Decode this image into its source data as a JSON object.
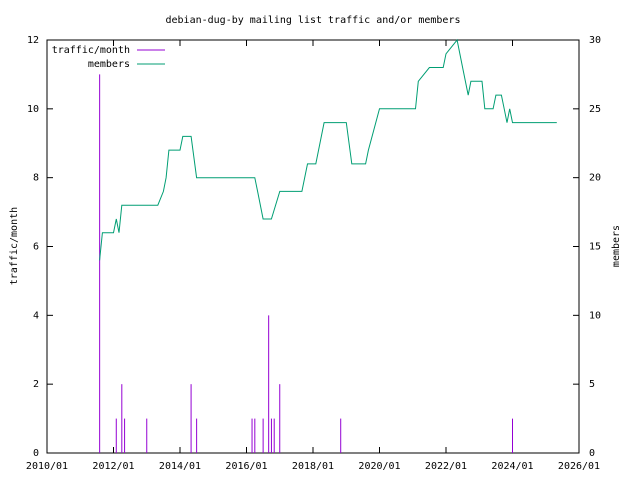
{
  "chart_data": {
    "type": "impulse-line",
    "title": "debian-dug-by mailing list traffic and/or members",
    "xlabel": null,
    "ylabel": "traffic/month",
    "y2label": "members",
    "xlim": [
      "2010/01",
      "2026/01"
    ],
    "xticks": [
      "2010/01",
      "2012/01",
      "2014/01",
      "2016/01",
      "2018/01",
      "2020/01",
      "2022/01",
      "2024/01",
      "2026/01"
    ],
    "ylim": [
      0,
      12
    ],
    "yticks": [
      0,
      2,
      4,
      6,
      8,
      10,
      12
    ],
    "y2lim": [
      0,
      30
    ],
    "y2ticks": [
      0,
      5,
      10,
      15,
      20,
      25,
      30
    ],
    "grid": false,
    "legend": "top-left",
    "series": [
      {
        "name": "traffic/month",
        "color": "#9400d3",
        "style": "impulses",
        "x": [
          "2011/08",
          "2012/02",
          "2012/04",
          "2012/05",
          "2013/01",
          "2014/05",
          "2014/07",
          "2016/03",
          "2016/04",
          "2016/07",
          "2016/09",
          "2016/10",
          "2016/11",
          "2017/01",
          "2018/11",
          "2024/01"
        ],
        "values": [
          11,
          1,
          2,
          1,
          1,
          2,
          1,
          1,
          1,
          1,
          4,
          1,
          1,
          2,
          1,
          1
        ]
      },
      {
        "name": "members",
        "color": "#009e73",
        "style": "line",
        "axis": "y2",
        "x": [
          "2011/08",
          "2011/09",
          "2012/01",
          "2012/02",
          "2012/03",
          "2012/04",
          "2013/05",
          "2013/07",
          "2013/08",
          "2013/09",
          "2014/01",
          "2014/02",
          "2014/05",
          "2014/07",
          "2016/04",
          "2016/05",
          "2016/07",
          "2016/10",
          "2017/01",
          "2017/09",
          "2017/11",
          "2018/02",
          "2018/05",
          "2019/01",
          "2019/03",
          "2019/08",
          "2019/09",
          "2020/01",
          "2021/02",
          "2021/03",
          "2021/07",
          "2021/12",
          "2022/01",
          "2022/05",
          "2022/07",
          "2022/09",
          "2022/10",
          "2023/02",
          "2023/03",
          "2023/06",
          "2023/07",
          "2023/09",
          "2023/10",
          "2023/11",
          "2023/12",
          "2024/01",
          "2025/05"
        ],
        "values": [
          14,
          16,
          16,
          17,
          16,
          18,
          18,
          19,
          20,
          22,
          22,
          23,
          23,
          20,
          20,
          19,
          17,
          17,
          19,
          19,
          21,
          21,
          24,
          24,
          21,
          21,
          22,
          25,
          25,
          27,
          28,
          28,
          29,
          30,
          28,
          26,
          27,
          27,
          25,
          25,
          26,
          26,
          25,
          24,
          25,
          24,
          24
        ]
      }
    ]
  }
}
